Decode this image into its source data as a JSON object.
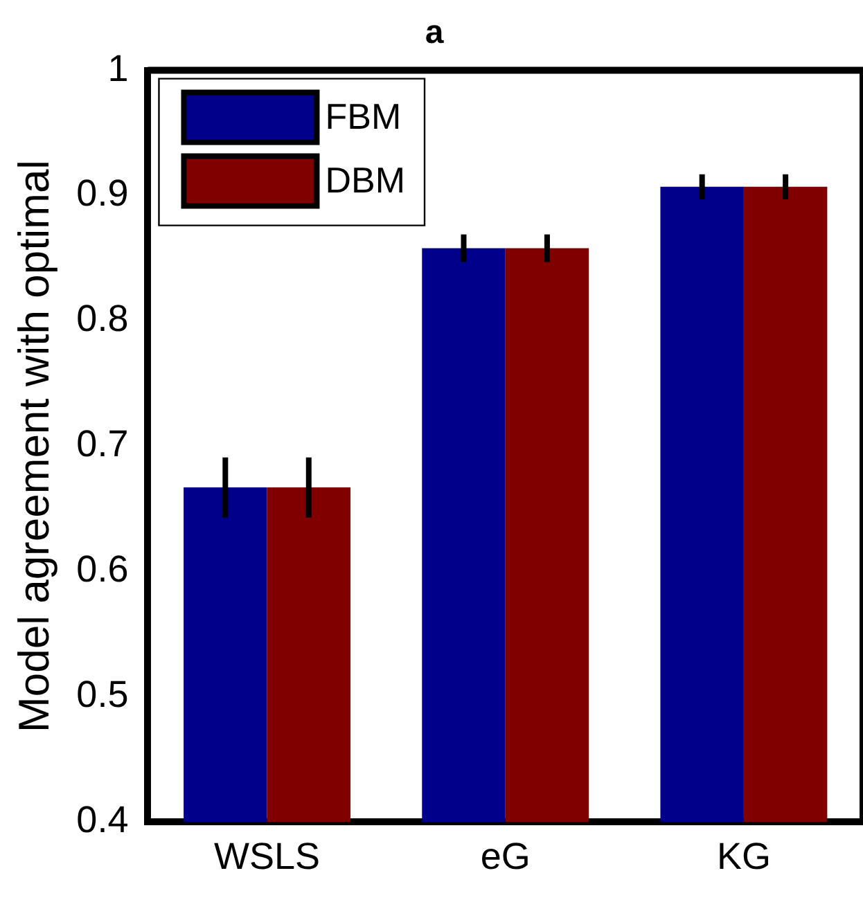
{
  "chart_data": {
    "type": "bar",
    "title": "a",
    "ylabel": "Model agreement with optimal",
    "categories": [
      "WSLS",
      "eG",
      "KG"
    ],
    "series": [
      {
        "name": "FBM",
        "color": "#00008b",
        "values": [
          0.667,
          0.858,
          0.907
        ],
        "errors": [
          0.024,
          0.011,
          0.01
        ]
      },
      {
        "name": "DBM",
        "color": "#800000",
        "values": [
          0.667,
          0.858,
          0.907
        ],
        "errors": [
          0.024,
          0.011,
          0.01
        ]
      }
    ],
    "ylim": [
      0.4,
      1
    ],
    "yticks": [
      0.4,
      0.5,
      0.6,
      0.7,
      0.8,
      0.9,
      1
    ],
    "grid": false,
    "legend": "top left"
  }
}
